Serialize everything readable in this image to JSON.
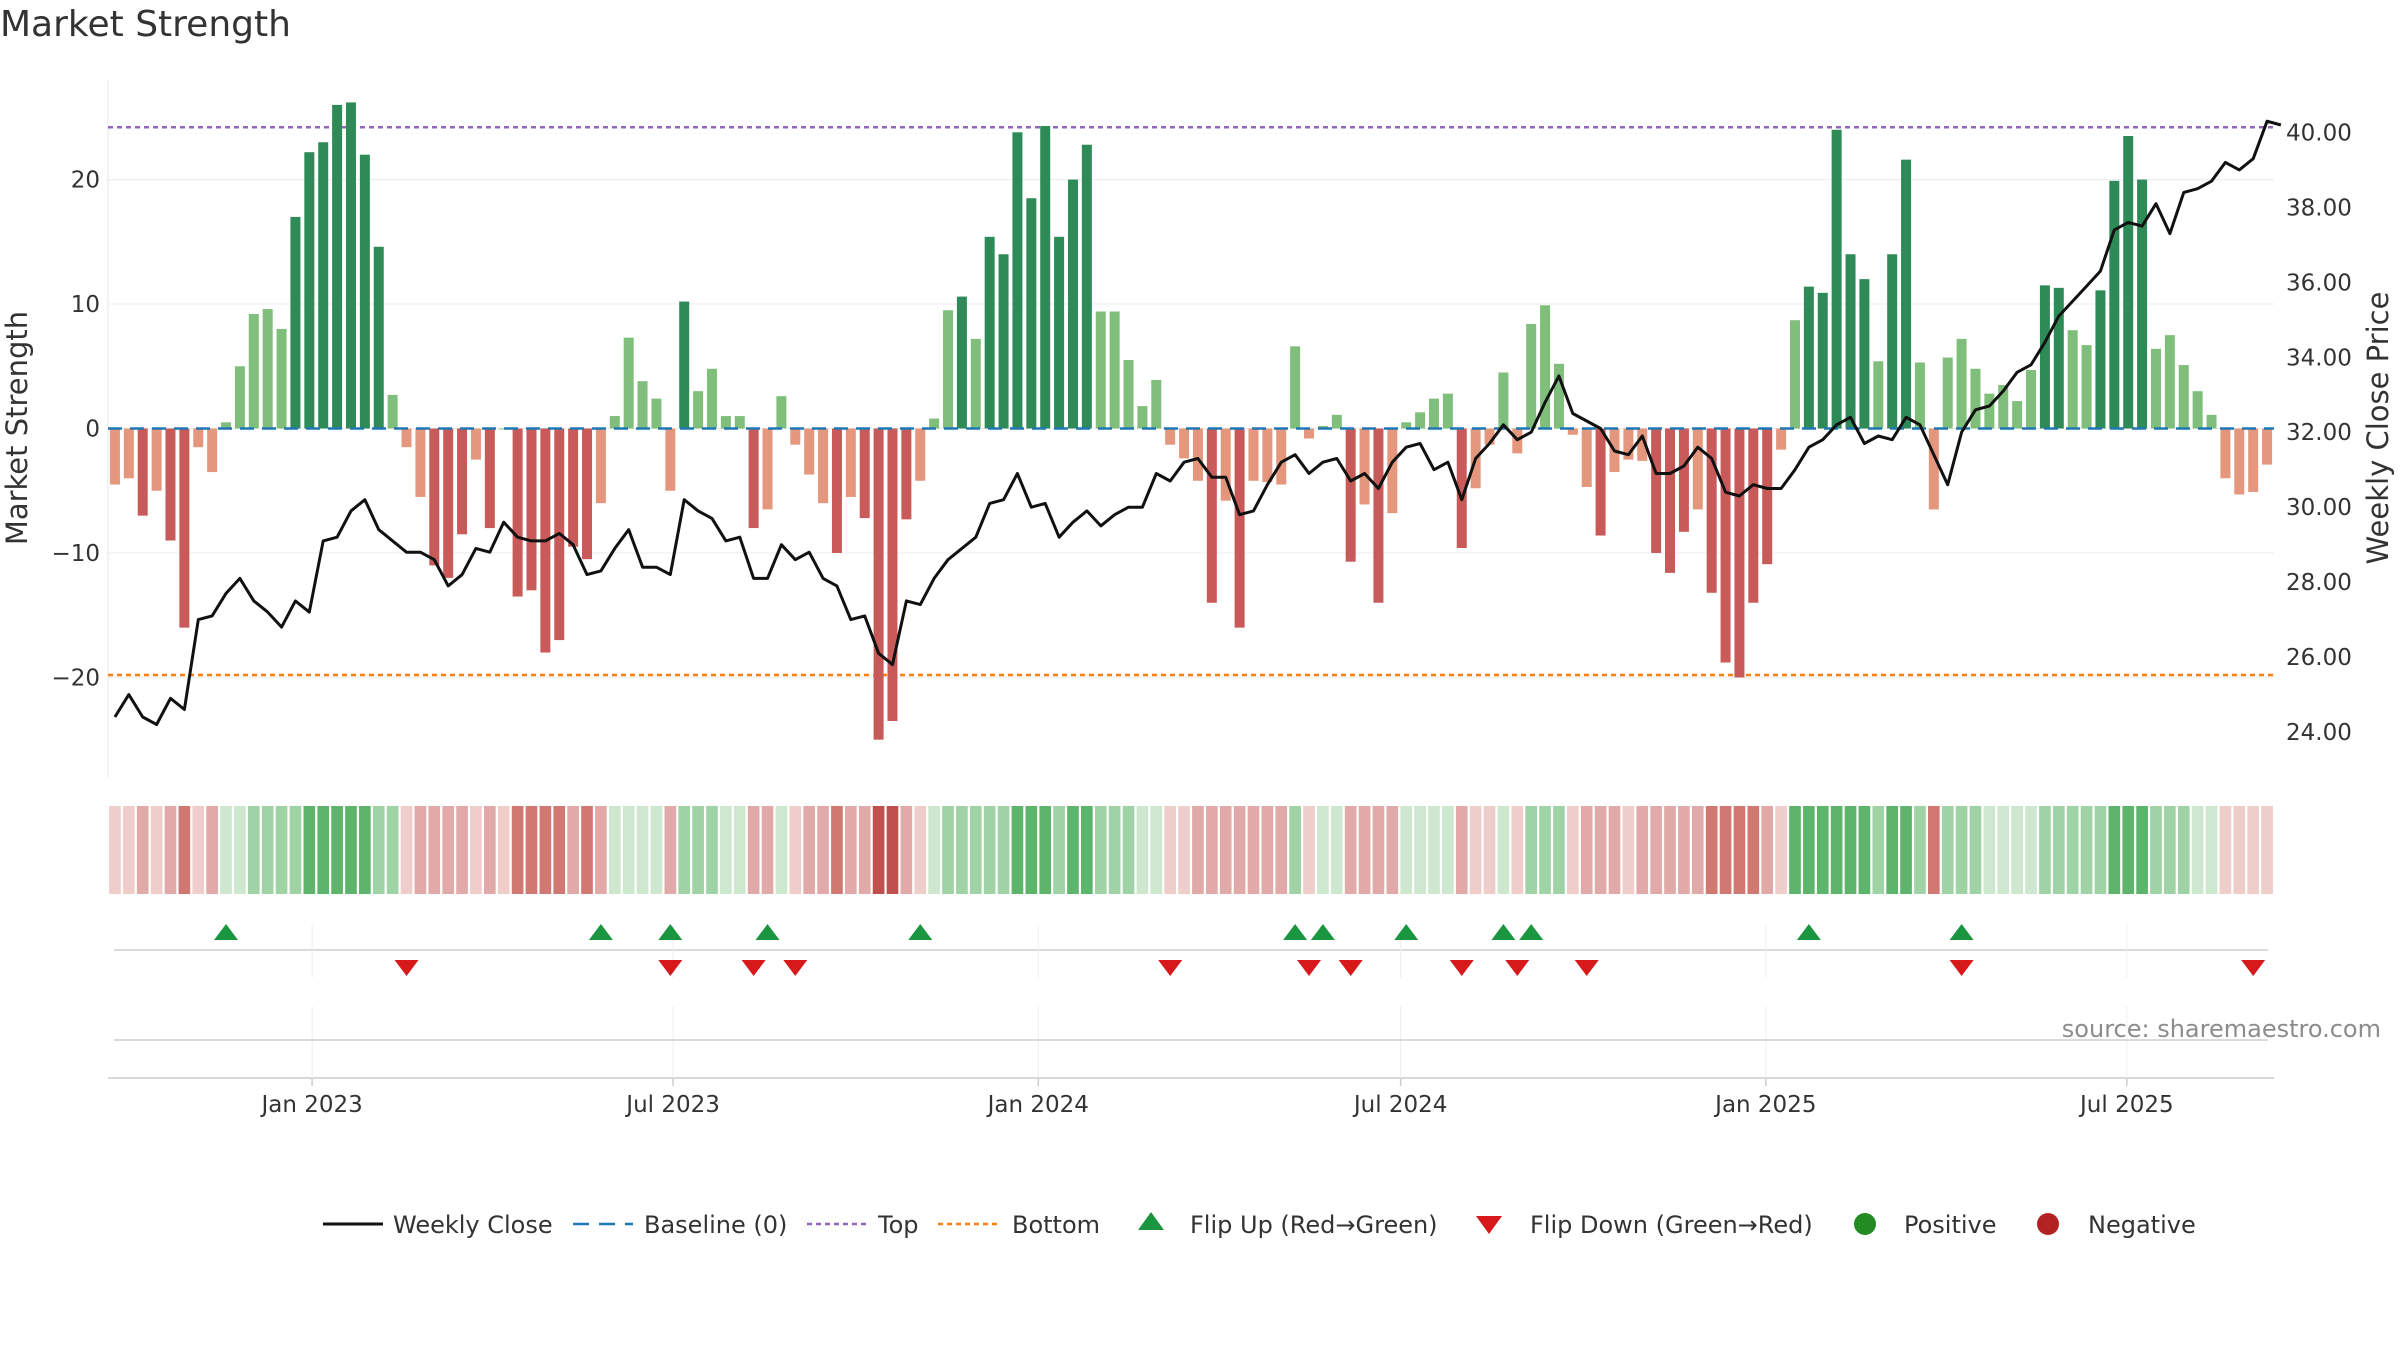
{
  "chart_data": {
    "type": "bar",
    "title": "Market Strength",
    "ylabel": "Market Strength",
    "y2label": "Weekly Close Price",
    "source": "source: sharemaestro.com",
    "ylim": [
      -28,
      28
    ],
    "y2lim": [
      22.8,
      41.4
    ],
    "yticks": [
      "20",
      "10",
      "0",
      "−10",
      "−20"
    ],
    "ytick_values": [
      20,
      10,
      0,
      -10,
      -20
    ],
    "y2ticks": [
      "40.00",
      "38.00",
      "36.00",
      "34.00",
      "32.00",
      "30.00",
      "28.00",
      "26.00",
      "24.00"
    ],
    "y2tick_values": [
      40,
      38,
      36,
      34,
      32,
      30,
      28,
      26,
      24
    ],
    "xticks": [
      "Jan 2023",
      "Jul 2023",
      "Jan 2024",
      "Jul 2024",
      "Jan 2025",
      "Jul 2025"
    ],
    "xtick_weeks": [
      14.7,
      40.7,
      67.0,
      93.1,
      119.4,
      145.4
    ],
    "top_threshold": 24.2,
    "bottom_threshold": -19.8,
    "baseline": 0,
    "colors": {
      "strong_green": "#2e8b57",
      "light_green": "#7fbf7b",
      "strong_red": "#c85a5a",
      "light_red": "#e4977d",
      "price_line": "#111111",
      "baseline": "#1f77b4",
      "top": "#9467bd",
      "bottom": "#ff7f0e",
      "flip_up": "#1a9641",
      "flip_down": "#d7191c",
      "positive": "#228b22",
      "negative": "#b22222"
    },
    "strength": [
      -4.5,
      -4,
      -7,
      -5,
      -9,
      -16,
      -1.5,
      -3.5,
      0.5,
      5,
      9.2,
      9.6,
      8,
      17,
      22.2,
      23,
      26,
      26.2,
      22,
      14.6,
      2.7,
      -1.5,
      -5.5,
      -11,
      -12,
      -8.5,
      -2.5,
      -8,
      0,
      -13.5,
      -13,
      -18,
      -17,
      -9.5,
      -10.5,
      -6,
      1,
      7.3,
      3.8,
      2.4,
      -5,
      10.2,
      3,
      4.8,
      1,
      1,
      -8,
      -6.5,
      2.6,
      -1.3,
      -3.7,
      -6,
      -10,
      -5.5,
      -7.2,
      -25,
      -23.5,
      -7.3,
      -4.2,
      0.8,
      9.5,
      10.6,
      7.2,
      15.4,
      14,
      23.8,
      18.5,
      24.3,
      15.4,
      20,
      22.8,
      9.4,
      9.4,
      5.5,
      1.8,
      3.9,
      -1.3,
      -2.4,
      -4.2,
      -14,
      -5.8,
      -16,
      -4.2,
      -4.3,
      -4.5,
      6.6,
      -0.8,
      0.2,
      1.1,
      -10.7,
      -6.1,
      -14,
      -6.8,
      0.5,
      1.3,
      2.4,
      2.8,
      -9.6,
      -4.8,
      -1.3,
      4.5,
      -2,
      8.4,
      9.9,
      5.2,
      -0.5,
      -4.7,
      -8.6,
      -3.5,
      -2.5,
      -2.6,
      -10,
      -11.6,
      -8.3,
      -6.5,
      -13.2,
      -18.8,
      -20,
      -14,
      -10.9,
      -1.7,
      8.7,
      11.4,
      10.9,
      24,
      14,
      12,
      5.4,
      14,
      21.6,
      5.3,
      -6.5,
      5.7,
      7.2,
      4.8,
      2.8,
      3.5,
      2.2,
      4.7,
      11.5,
      11.3,
      7.9,
      6.7,
      11.1,
      19.9,
      23.5,
      20,
      6.4,
      7.5,
      5.1,
      3,
      1.1,
      -4,
      -5.3,
      -5.1,
      -2.9
    ],
    "close": [
      24.4,
      25,
      24.4,
      24.2,
      24.9,
      24.6,
      27,
      27.1,
      27.7,
      28.1,
      27.5,
      27.2,
      26.8,
      27.5,
      27.2,
      29.1,
      29.2,
      29.9,
      30.2,
      29.4,
      29.1,
      28.8,
      28.8,
      28.6,
      27.9,
      28.2,
      28.9,
      28.8,
      29.6,
      29.2,
      29.1,
      29.1,
      29.3,
      29.0,
      28.2,
      28.3,
      28.9,
      29.4,
      28.4,
      28.4,
      28.2,
      30.2,
      29.9,
      29.7,
      29.1,
      29.2,
      28.1,
      28.1,
      29.0,
      28.6,
      28.8,
      28.1,
      27.9,
      27.0,
      27.1,
      26.1,
      25.8,
      27.5,
      27.4,
      28.1,
      28.6,
      28.9,
      29.2,
      30.1,
      30.2,
      30.9,
      30.0,
      30.1,
      29.2,
      29.6,
      29.9,
      29.5,
      29.8,
      30.0,
      30.0,
      30.9,
      30.7,
      31.2,
      31.3,
      30.8,
      30.8,
      29.8,
      29.9,
      30.6,
      31.2,
      31.4,
      30.9,
      31.2,
      31.3,
      30.7,
      30.9,
      30.5,
      31.2,
      31.6,
      31.7,
      31.0,
      31.2,
      30.2,
      31.3,
      31.7,
      32.2,
      31.8,
      32.0,
      32.8,
      33.5,
      32.5,
      32.3,
      32.1,
      31.5,
      31.4,
      31.9,
      30.9,
      30.9,
      31.1,
      31.6,
      31.3,
      30.4,
      30.3,
      30.6,
      30.5,
      30.5,
      31.0,
      31.6,
      31.8,
      32.2,
      32.4,
      31.7,
      31.9,
      31.8,
      32.4,
      32.2,
      31.4,
      30.6,
      32.0,
      32.6,
      32.7,
      33.1,
      33.6,
      33.8,
      34.4,
      35.1,
      35.5,
      35.9,
      36.3,
      37.4,
      37.6,
      37.5,
      38.1,
      37.3,
      38.4,
      38.5,
      38.7,
      39.2,
      39.0,
      39.3,
      40.3,
      40.2
    ],
    "heat_strip": [
      -1,
      -1,
      -2,
      -1,
      -2,
      -3,
      -1,
      -2,
      1,
      1,
      2,
      2,
      2,
      2,
      3,
      3,
      3,
      3,
      3,
      2,
      2,
      -1,
      -2,
      -2,
      -2,
      -2,
      -1,
      -2,
      -1,
      -3,
      -3,
      -3,
      -3,
      -2,
      -3,
      -2,
      1,
      1,
      1,
      1,
      -2,
      2,
      2,
      2,
      1,
      1,
      -2,
      -2,
      1,
      -1,
      -2,
      -2,
      -3,
      -2,
      -2,
      -4,
      -4,
      -2,
      -1,
      1,
      2,
      2,
      2,
      2,
      2,
      3,
      3,
      3,
      2,
      3,
      3,
      2,
      2,
      2,
      1,
      1,
      -1,
      -1,
      -2,
      -2,
      -2,
      -2,
      -2,
      -2,
      -2,
      2,
      -1,
      1,
      1,
      -2,
      -2,
      -2,
      -2,
      1,
      1,
      1,
      1,
      -2,
      -1,
      -1,
      1,
      -1,
      2,
      2,
      2,
      -1,
      -2,
      -2,
      -2,
      -1,
      -2,
      -2,
      -2,
      -2,
      -2,
      -3,
      -3,
      -3,
      -3,
      -2,
      -1,
      3,
      3,
      3,
      3,
      3,
      3,
      2,
      3,
      3,
      2,
      -3,
      2,
      2,
      2,
      1,
      1,
      1,
      1,
      2,
      2,
      2,
      2,
      2,
      3,
      3,
      3,
      2,
      2,
      2,
      1,
      1,
      -1,
      -1,
      -1,
      -1
    ],
    "flip_up_weeks": [
      8,
      35,
      40,
      47,
      58,
      85,
      87,
      93,
      100,
      102,
      122,
      133
    ],
    "flip_down_weeks": [
      21,
      40,
      46,
      49,
      76,
      86,
      89,
      97,
      101,
      106,
      133,
      154
    ],
    "legend": [
      {
        "key": "close",
        "label": "Weekly Close"
      },
      {
        "key": "baseline",
        "label": "Baseline (0)"
      },
      {
        "key": "top",
        "label": "Top"
      },
      {
        "key": "bottom",
        "label": "Bottom"
      },
      {
        "key": "flip_up",
        "label": "Flip Up (Red→Green)"
      },
      {
        "key": "flip_down",
        "label": "Flip Down (Green→Red)"
      },
      {
        "key": "positive",
        "label": "Positive"
      },
      {
        "key": "negative",
        "label": "Negative"
      }
    ]
  }
}
